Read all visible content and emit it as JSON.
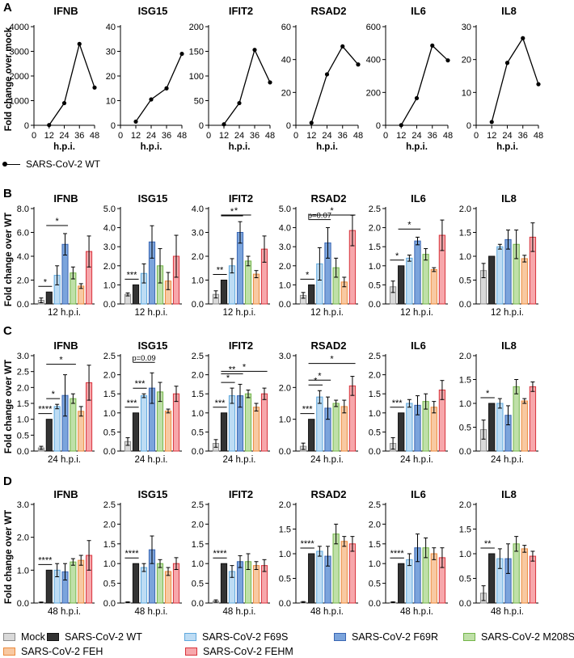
{
  "colors": {
    "Mock": {
      "fill": "#d9d9d9",
      "stroke": "#8c8c8c"
    },
    "WT": {
      "fill": "#333333",
      "stroke": "#111111"
    },
    "F69S": {
      "fill": "#bddcf4",
      "stroke": "#5fa8dd"
    },
    "F69R": {
      "fill": "#7ba4dc",
      "stroke": "#3a66b3"
    },
    "M208S": {
      "fill": "#bfe0a8",
      "stroke": "#74b54a"
    },
    "FEH": {
      "fill": "#f8c9a2",
      "stroke": "#ec8a3c"
    },
    "FEHM": {
      "fill": "#f7a7ab",
      "stroke": "#d8333c"
    }
  },
  "legend": [
    {
      "key": "Mock",
      "label": "Mock"
    },
    {
      "key": "WT",
      "label": "SARS-CoV-2 WT"
    },
    {
      "key": "F69S",
      "label": "SARS-CoV-2 F69S"
    },
    {
      "key": "F69R",
      "label": "SARS-CoV-2 F69R"
    },
    {
      "key": "M208S",
      "label": "SARS-CoV-2 M208S"
    },
    {
      "key": "FEH",
      "label": "SARS-CoV-2 FEH"
    },
    {
      "key": "FEHM",
      "label": "SARS-CoV-2 FEHM"
    }
  ],
  "top_legend_label": "SARS-CoV-2 WT",
  "chart_data": [
    {
      "panel": "A",
      "type": "line",
      "ylabel": "Fold change over mock",
      "xlabel": "h.p.i.",
      "x_ticks": [
        "0",
        "12",
        "24",
        "36",
        "48"
      ],
      "series_name": "SARS-CoV-2 WT",
      "subplots": [
        {
          "title": "IFNB",
          "ylim": [
            0,
            4000
          ],
          "yticks": [
            "0",
            "1000",
            "2000",
            "3000",
            "4000"
          ],
          "x": [
            12,
            24,
            36,
            48
          ],
          "y": [
            10,
            900,
            3300,
            1530
          ]
        },
        {
          "title": "ISG15",
          "ylim": [
            0,
            40
          ],
          "yticks": [
            "0",
            "10",
            "20",
            "30",
            "40"
          ],
          "x": [
            12,
            24,
            36,
            48
          ],
          "y": [
            1.5,
            10.5,
            15,
            29
          ]
        },
        {
          "title": "IFIT2",
          "ylim": [
            0,
            200
          ],
          "yticks": [
            "0",
            "50",
            "100",
            "150",
            "200"
          ],
          "x": [
            12,
            24,
            36,
            48
          ],
          "y": [
            2,
            45,
            153,
            87
          ]
        },
        {
          "title": "RSAD2",
          "ylim": [
            0,
            60
          ],
          "yticks": [
            "0",
            "20",
            "40",
            "60"
          ],
          "x": [
            12,
            24,
            36,
            48
          ],
          "y": [
            1.5,
            31,
            48,
            37
          ]
        },
        {
          "title": "IL6",
          "ylim": [
            0,
            600
          ],
          "yticks": [
            "0",
            "200",
            "400",
            "600"
          ],
          "x": [
            12,
            24,
            36,
            48
          ],
          "y": [
            1,
            165,
            485,
            395
          ]
        },
        {
          "title": "IL8",
          "ylim": [
            0,
            30
          ],
          "yticks": [
            "0",
            "10",
            "20",
            "30"
          ],
          "x": [
            12,
            24,
            36,
            48
          ],
          "y": [
            1,
            19,
            26.5,
            12.5
          ]
        }
      ]
    },
    {
      "panel": "B",
      "type": "bar",
      "ylabel": "Fold change over WT",
      "time_label": "12 h.p.i.",
      "categories": [
        "Mock",
        "WT",
        "F69S",
        "F69R",
        "M208S",
        "FEH",
        "FEHM"
      ],
      "subplots": [
        {
          "title": "IFNB",
          "ylim": [
            0,
            8
          ],
          "yticks": [
            "0.0",
            "2.0",
            "4.0",
            "6.0",
            "8.0"
          ],
          "values": [
            0.3,
            1.0,
            2.4,
            5.0,
            2.6,
            1.5,
            4.4
          ],
          "errors": [
            0.2,
            0,
            0.8,
            0.9,
            0.5,
            0.2,
            1.3
          ],
          "sig": [
            {
              "from": 0,
              "to": 1,
              "text": "*"
            },
            {
              "from": 1,
              "to": 3,
              "text": "*"
            }
          ]
        },
        {
          "title": "ISG15",
          "ylim": [
            0,
            5
          ],
          "yticks": [
            "0.0",
            "1.0",
            "2.0",
            "3.0",
            "4.0",
            "5.0"
          ],
          "values": [
            0.5,
            1.0,
            1.6,
            3.25,
            2.0,
            1.2,
            2.5
          ],
          "errors": [
            0.08,
            0,
            0.5,
            0.85,
            0.9,
            0.45,
            1.1
          ],
          "sig": [
            {
              "from": 0,
              "to": 1,
              "text": "***"
            }
          ]
        },
        {
          "title": "IFIT2",
          "ylim": [
            0,
            4
          ],
          "yticks": [
            "0.0",
            "1.0",
            "2.0",
            "3.0",
            "4.0"
          ],
          "values": [
            0.4,
            1.0,
            1.6,
            3.0,
            1.8,
            1.25,
            2.3
          ],
          "errors": [
            0.15,
            0,
            0.3,
            0.45,
            0.2,
            0.15,
            0.55
          ],
          "sig": [
            {
              "from": 0,
              "to": 1,
              "text": "**"
            },
            {
              "from": 1,
              "to": 3,
              "text": "*"
            },
            {
              "from": 1,
              "to": 4,
              "text": "*"
            }
          ]
        },
        {
          "title": "RSAD2",
          "ylim": [
            0,
            5
          ],
          "yticks": [
            "0.0",
            "1.0",
            "2.0",
            "3.0",
            "4.0",
            "5.0"
          ],
          "values": [
            0.45,
            1.0,
            2.1,
            3.2,
            1.9,
            1.15,
            3.85
          ],
          "errors": [
            0.15,
            0,
            0.85,
            0.8,
            0.5,
            0.25,
            0.8
          ],
          "sig": [
            {
              "from": 0,
              "to": 1,
              "text": "*"
            },
            {
              "from": 1,
              "to": 3,
              "text": "p=0.07"
            },
            {
              "from": 1,
              "to": 6,
              "text": "*"
            }
          ]
        },
        {
          "title": "IL6",
          "ylim": [
            0,
            2.5
          ],
          "yticks": [
            "0.0",
            "0.5",
            "1.0",
            "1.5",
            "2.0",
            "2.5"
          ],
          "values": [
            0.45,
            1.0,
            1.2,
            1.65,
            1.3,
            0.9,
            1.8
          ],
          "errors": [
            0.15,
            0,
            0.08,
            0.1,
            0.15,
            0.05,
            0.4
          ],
          "sig": [
            {
              "from": 0,
              "to": 1,
              "text": "*"
            },
            {
              "from": 1,
              "to": 3,
              "text": "*"
            }
          ]
        },
        {
          "title": "IL8",
          "ylim": [
            0,
            2.0
          ],
          "yticks": [
            "0.0",
            "0.5",
            "1.0",
            "1.5",
            "2.0"
          ],
          "values": [
            0.7,
            1.0,
            1.2,
            1.35,
            1.25,
            0.95,
            1.4
          ],
          "errors": [
            0.15,
            0,
            0.05,
            0.2,
            0.3,
            0.07,
            0.3
          ],
          "sig": []
        }
      ]
    },
    {
      "panel": "C",
      "type": "bar",
      "ylabel": "Fold change over WT",
      "time_label": "24 h.p.i.",
      "categories": [
        "Mock",
        "WT",
        "F69S",
        "F69R",
        "M208S",
        "FEH",
        "FEHM"
      ],
      "subplots": [
        {
          "title": "IFNB",
          "ylim": [
            0,
            3
          ],
          "yticks": [
            "0.0",
            "0.5",
            "1.0",
            "1.5",
            "2.0",
            "2.5",
            "3.0"
          ],
          "values": [
            0.1,
            1.0,
            1.4,
            1.75,
            1.65,
            1.25,
            2.15
          ],
          "errors": [
            0.05,
            0,
            0.07,
            0.65,
            0.15,
            0.15,
            0.55
          ],
          "sig": [
            {
              "from": 0,
              "to": 1,
              "text": "****"
            },
            {
              "from": 1,
              "to": 2,
              "text": "*"
            },
            {
              "from": 1,
              "to": 4,
              "text": "*"
            }
          ]
        },
        {
          "title": "ISG15",
          "ylim": [
            0,
            2.5
          ],
          "yticks": [
            "0.0",
            "0.5",
            "1.0",
            "1.5",
            "2.0",
            "2.5"
          ],
          "values": [
            0.25,
            1.0,
            1.45,
            1.65,
            1.55,
            1.05,
            1.5
          ],
          "errors": [
            0.1,
            0,
            0.05,
            0.4,
            0.25,
            0.05,
            0.2
          ],
          "sig": [
            {
              "from": 0,
              "to": 1,
              "text": "***"
            },
            {
              "from": 1,
              "to": 2,
              "text": "***"
            },
            {
              "from": 1,
              "to": 3,
              "text": "p=0.09"
            }
          ]
        },
        {
          "title": "IFIT2",
          "ylim": [
            0,
            2.5
          ],
          "yticks": [
            "0.0",
            "0.5",
            "1.0",
            "1.5",
            "2.0",
            "2.5"
          ],
          "values": [
            0.2,
            1.0,
            1.45,
            1.45,
            1.5,
            1.15,
            1.5
          ],
          "errors": [
            0.1,
            0,
            0.2,
            0.3,
            0.1,
            0.1,
            0.15
          ],
          "sig": [
            {
              "from": 0,
              "to": 1,
              "text": "***"
            },
            {
              "from": 1,
              "to": 2,
              "text": "*"
            },
            {
              "from": 1,
              "to": 3,
              "text": "**"
            },
            {
              "from": 1,
              "to": 6,
              "text": "*"
            }
          ]
        },
        {
          "title": "RSAD2",
          "ylim": [
            0,
            3
          ],
          "yticks": [
            "0.0",
            "1.0",
            "2.0",
            "3.0"
          ],
          "values": [
            0.15,
            1.0,
            1.7,
            1.35,
            1.5,
            1.4,
            2.05
          ],
          "errors": [
            0.1,
            0,
            0.2,
            0.35,
            0.1,
            0.2,
            0.3
          ],
          "sig": [
            {
              "from": 0,
              "to": 1,
              "text": "***"
            },
            {
              "from": 1,
              "to": 2,
              "text": "*"
            },
            {
              "from": 1,
              "to": 3,
              "text": "*"
            },
            {
              "from": 1,
              "to": 6,
              "text": "*"
            }
          ]
        },
        {
          "title": "IL6",
          "ylim": [
            0,
            2.5
          ],
          "yticks": [
            "0.0",
            "0.5",
            "1.0",
            "1.5",
            "2.0",
            "2.5"
          ],
          "values": [
            0.2,
            1.0,
            1.25,
            1.2,
            1.3,
            1.15,
            1.6
          ],
          "errors": [
            0.15,
            0,
            0.1,
            0.25,
            0.2,
            0.15,
            0.25
          ],
          "sig": [
            {
              "from": 0,
              "to": 1,
              "text": "***"
            }
          ]
        },
        {
          "title": "IL8",
          "ylim": [
            0,
            2.0
          ],
          "yticks": [
            "0.0",
            "0.5",
            "1.0",
            "1.5",
            "2.0"
          ],
          "values": [
            0.45,
            1.0,
            1.0,
            0.75,
            1.35,
            1.05,
            1.35
          ],
          "errors": [
            0.2,
            0,
            0.1,
            0.2,
            0.15,
            0.05,
            0.1
          ],
          "sig": [
            {
              "from": 0,
              "to": 1,
              "text": "*"
            }
          ]
        }
      ]
    },
    {
      "panel": "D",
      "type": "bar",
      "ylabel": "Fold change over WT",
      "time_label": "48 h.p.i.",
      "categories": [
        "Mock",
        "WT",
        "F69S",
        "F69R",
        "M208S",
        "FEH",
        "FEHM"
      ],
      "subplots": [
        {
          "title": "IFNB",
          "ylim": [
            0,
            3
          ],
          "yticks": [
            "0.0",
            "1.0",
            "2.0",
            "3.0"
          ],
          "values": [
            0.02,
            1.0,
            1.0,
            0.95,
            1.25,
            1.3,
            1.45
          ],
          "errors": [
            0.01,
            0,
            0.2,
            0.25,
            0.1,
            0.15,
            0.45
          ],
          "sig": [
            {
              "from": 0,
              "to": 1,
              "text": "****"
            }
          ]
        },
        {
          "title": "ISG15",
          "ylim": [
            0,
            2.5
          ],
          "yticks": [
            "0.0",
            "0.5",
            "1.0",
            "1.5",
            "2.0",
            "2.5"
          ],
          "values": [
            0.02,
            1.0,
            0.9,
            1.35,
            1.0,
            0.8,
            1.0
          ],
          "errors": [
            0.01,
            0,
            0.1,
            0.35,
            0.1,
            0.1,
            0.15
          ],
          "sig": [
            {
              "from": 0,
              "to": 1,
              "text": "****"
            }
          ]
        },
        {
          "title": "IFIT2",
          "ylim": [
            0,
            2.5
          ],
          "yticks": [
            "0.0",
            "0.5",
            "1.0",
            "1.5",
            "2.0",
            "2.5"
          ],
          "values": [
            0.05,
            1.0,
            0.8,
            1.05,
            1.05,
            0.95,
            0.95
          ],
          "errors": [
            0.03,
            0,
            0.15,
            0.15,
            0.2,
            0.1,
            0.15
          ],
          "sig": [
            {
              "from": 0,
              "to": 1,
              "text": "****"
            }
          ]
        },
        {
          "title": "RSAD2",
          "ylim": [
            0,
            2.0
          ],
          "yticks": [
            "0.0",
            "0.5",
            "1.0",
            "1.5",
            "2.0"
          ],
          "values": [
            0.02,
            1.0,
            1.05,
            0.95,
            1.4,
            1.25,
            1.2
          ],
          "errors": [
            0.01,
            0,
            0.1,
            0.2,
            0.2,
            0.1,
            0.15
          ],
          "sig": [
            {
              "from": 0,
              "to": 1,
              "text": "****"
            }
          ]
        },
        {
          "title": "IL6",
          "ylim": [
            0,
            2.5
          ],
          "yticks": [
            "0.0",
            "0.5",
            "1.0",
            "1.5",
            "2.0",
            "2.5"
          ],
          "values": [
            0.02,
            1.0,
            1.1,
            1.4,
            1.4,
            1.25,
            1.15
          ],
          "errors": [
            0.01,
            0,
            0.15,
            0.35,
            0.25,
            0.15,
            0.25
          ],
          "sig": [
            {
              "from": 0,
              "to": 1,
              "text": "****"
            }
          ]
        },
        {
          "title": "IL8",
          "ylim": [
            0,
            2.0
          ],
          "yticks": [
            "0.0",
            "0.5",
            "1.0",
            "1.5",
            "2.0"
          ],
          "values": [
            0.2,
            1.0,
            0.9,
            0.9,
            1.2,
            1.1,
            0.95
          ],
          "errors": [
            0.15,
            0,
            0.2,
            0.3,
            0.15,
            0.07,
            0.1
          ],
          "sig": [
            {
              "from": 0,
              "to": 1,
              "text": "**"
            }
          ]
        }
      ]
    }
  ]
}
